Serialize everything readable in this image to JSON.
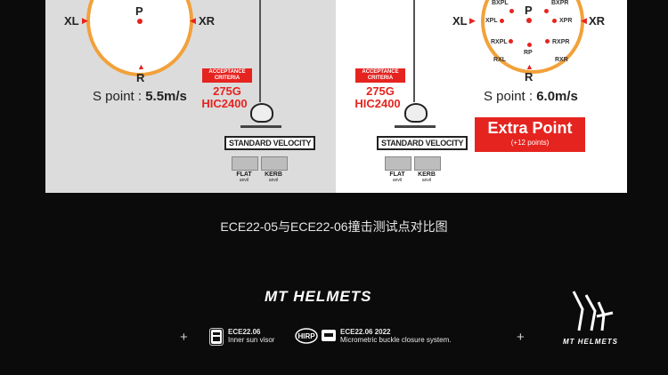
{
  "left": {
    "points": {
      "XL": "XL",
      "P": "P",
      "R": "R",
      "XR": "XR"
    },
    "speed_prefix": "S point : ",
    "speed_value": "5.5m/s",
    "acceptance_badge": "ACCEPTANCE CRITERIA",
    "criteria_line1": "275G",
    "criteria_line2": "HIC2400",
    "standard_velocity": "STANDARD VELOCITY",
    "anvil_flat": "FLAT",
    "anvil_kerb": "KERB",
    "anvil_sub": "anvil"
  },
  "right": {
    "points": {
      "XL": "XL",
      "XR": "XR",
      "P": "P",
      "R": "R",
      "BXPL": "BXPL",
      "BXPR": "BXPR",
      "XPL": "XPL",
      "XPR": "XPR",
      "RXPL": "RXPL",
      "RXPR": "RXPR",
      "RP": "RP",
      "RXL": "RXL",
      "RXR": "RXR"
    },
    "speed_prefix": "S point : ",
    "speed_value": "6.0m/s",
    "acceptance_badge": "ACCEPTANCE CRITERIA",
    "criteria_line1": "275G",
    "criteria_line2": "HIC2400",
    "standard_velocity": "STANDARD VELOCITY",
    "anvil_flat": "FLAT",
    "anvil_kerb": "KERB",
    "anvil_sub": "anvil",
    "extra_point_title": "Extra Point",
    "extra_point_sub": "(+12 points)"
  },
  "caption": "ECE22-05与ECE22-06撞击测试点对比图",
  "brand": "MT HELMETS",
  "features": [
    {
      "icon": "ece-badge-icon",
      "title": "ECE22.06",
      "desc": "Inner sun visor"
    },
    {
      "icon": "hirp-icon",
      "title": "ECE22.06 2022",
      "desc": "Micrometric buckle closure system."
    }
  ],
  "logo_text": "MT HELMETS",
  "colors": {
    "accent_red": "#e52420",
    "oval_orange": "#f2a13a",
    "background": "#0b0b0b"
  }
}
